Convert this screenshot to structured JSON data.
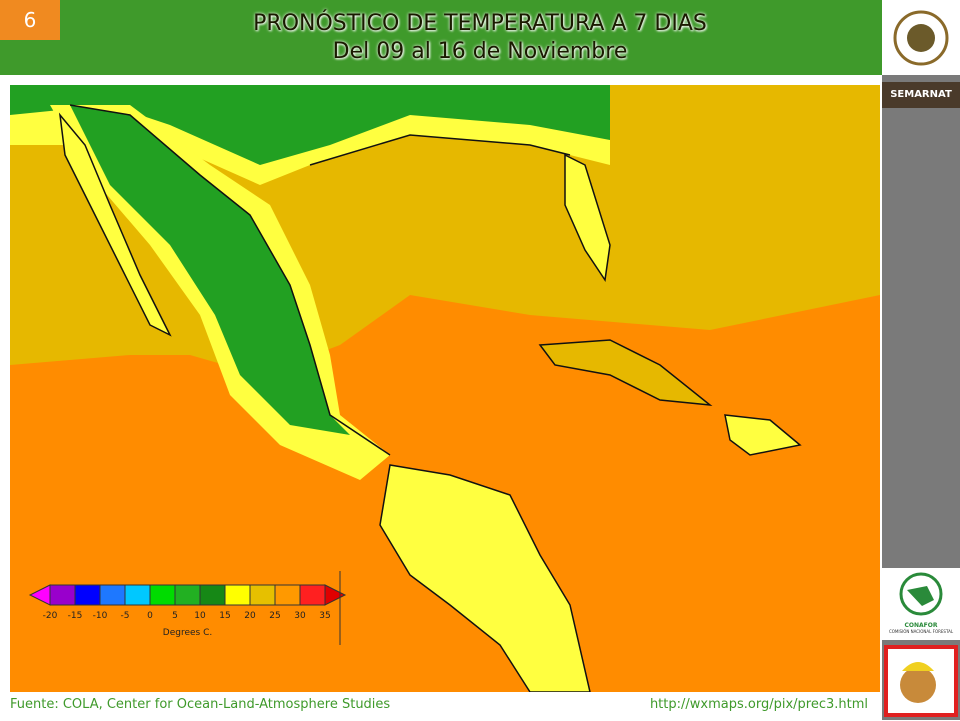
{
  "slide_number": "6",
  "header": {
    "title": "PRONÓSTICO DE TEMPERATURA A 7 DIAS",
    "subtitle": "Del 09 al 16 de Noviembre"
  },
  "sidebar": {
    "top_logo": "SEMARNAT",
    "bottom_logo": "CONAFOR",
    "bottom_logo_caption": "COMISIÓN NACIONAL FORESTAL"
  },
  "map": {
    "legend": {
      "ticks": [
        -20,
        -15,
        -10,
        -5,
        0,
        5,
        10,
        15,
        20,
        25,
        30,
        35
      ],
      "colors": [
        "#9900cc",
        "#0000ff",
        "#1e78ff",
        "#00c8ff",
        "#00dc00",
        "#22b022",
        "#168816",
        "#ffff00",
        "#e6c000",
        "#ff9900",
        "#ff2020"
      ],
      "low_color": "#ff00ff",
      "high_color": "#e00000",
      "unit": "Degrees C."
    }
  },
  "footer": {
    "source": "Fuente: COLA, Center  for Ocean-Land-Atmosphere Studies",
    "url": "http://wxmaps.org/pix/prec3.html"
  }
}
